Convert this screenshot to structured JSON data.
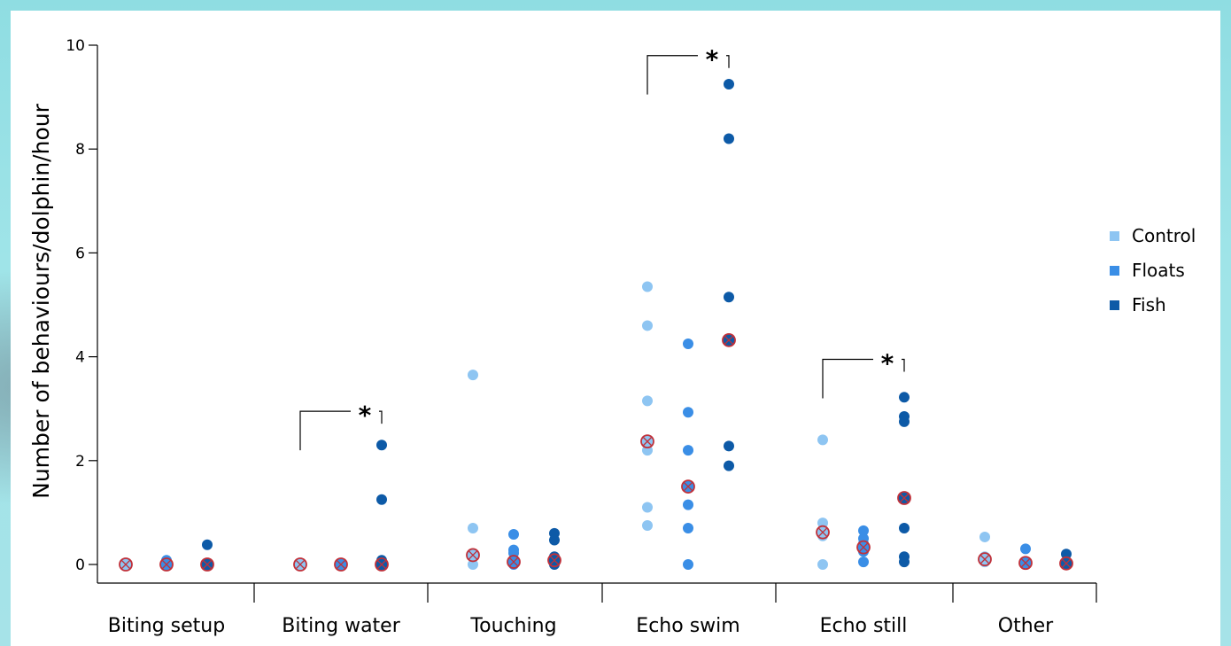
{
  "chart_data": {
    "type": "scatter",
    "ylabel": "Number of behaviours/dolphin/hour",
    "xlabel": "",
    "ylim": [
      0,
      10
    ],
    "yticks": [
      "0",
      "2",
      "4",
      "6",
      "8",
      "10"
    ],
    "categories": [
      "Biting setup",
      "Biting water",
      "Touching",
      "Echo swim",
      "Echo still",
      "Other"
    ],
    "legend": {
      "placement": "right",
      "entries": [
        "Control",
        "Floats",
        "Fish"
      ]
    },
    "colors": {
      "Control": "#8ec5f2",
      "Floats": "#3a8ee6",
      "Fish": "#0d5aa7",
      "marker_outline": "#c0313a"
    },
    "series": [
      {
        "name": "Control",
        "points": [
          [
            0,
            0
          ],
          [
            0,
            0.02
          ],
          [
            0,
            0
          ],
          [
            1,
            0
          ],
          [
            1,
            0
          ],
          [
            2,
            3.65
          ],
          [
            2,
            0.7
          ],
          [
            2,
            0.2
          ],
          [
            2,
            0
          ],
          [
            3,
            5.35
          ],
          [
            3,
            4.6
          ],
          [
            3,
            3.15
          ],
          [
            3,
            2.2
          ],
          [
            3,
            1.1
          ],
          [
            3,
            0.75
          ],
          [
            4,
            2.4
          ],
          [
            4,
            0.8
          ],
          [
            4,
            0.6
          ],
          [
            4,
            0.55
          ],
          [
            4,
            0
          ],
          [
            5,
            0.53
          ],
          [
            5,
            0.15
          ],
          [
            5,
            0.05
          ]
        ],
        "marked": [
          [
            0,
            0
          ],
          [
            1,
            0
          ],
          [
            2,
            0.18
          ],
          [
            3,
            2.37
          ],
          [
            4,
            0.62
          ],
          [
            5,
            0.1
          ]
        ]
      },
      {
        "name": "Floats",
        "points": [
          [
            0,
            0.08
          ],
          [
            0,
            0
          ],
          [
            1,
            0
          ],
          [
            1,
            0
          ],
          [
            2,
            0.58
          ],
          [
            2,
            0.28
          ],
          [
            2,
            0.22
          ],
          [
            2,
            0.05
          ],
          [
            2,
            0
          ],
          [
            3,
            4.25
          ],
          [
            3,
            2.93
          ],
          [
            3,
            2.2
          ],
          [
            3,
            1.15
          ],
          [
            3,
            0.7
          ],
          [
            3,
            0
          ],
          [
            4,
            0.65
          ],
          [
            4,
            0.5
          ],
          [
            4,
            0.4
          ],
          [
            4,
            0.25
          ],
          [
            4,
            0.05
          ],
          [
            5,
            0.3
          ],
          [
            5,
            0.05
          ],
          [
            5,
            0
          ]
        ],
        "marked": [
          [
            0,
            0
          ],
          [
            1,
            0
          ],
          [
            2,
            0.05
          ],
          [
            3,
            1.5
          ],
          [
            4,
            0.33
          ],
          [
            5,
            0.03
          ]
        ]
      },
      {
        "name": "Fish",
        "points": [
          [
            0,
            0.38
          ],
          [
            0,
            0
          ],
          [
            1,
            2.3
          ],
          [
            1,
            1.25
          ],
          [
            1,
            0.08
          ],
          [
            1,
            0
          ],
          [
            2,
            0.6
          ],
          [
            2,
            0.47
          ],
          [
            2,
            0.15
          ],
          [
            2,
            0.05
          ],
          [
            2,
            0
          ],
          [
            3,
            9.25
          ],
          [
            3,
            8.2
          ],
          [
            3,
            5.15
          ],
          [
            3,
            4.32
          ],
          [
            3,
            2.28
          ],
          [
            3,
            1.9
          ],
          [
            4,
            3.22
          ],
          [
            4,
            2.85
          ],
          [
            4,
            2.75
          ],
          [
            4,
            1.3
          ],
          [
            4,
            0.7
          ],
          [
            4,
            0.15
          ],
          [
            4,
            0.05
          ],
          [
            5,
            0.2
          ],
          [
            5,
            0.05
          ],
          [
            5,
            0
          ]
        ],
        "marked": [
          [
            0,
            0
          ],
          [
            1,
            0
          ],
          [
            2,
            0.08
          ],
          [
            3,
            4.32
          ],
          [
            4,
            1.28
          ],
          [
            5,
            0.02
          ]
        ]
      }
    ],
    "significance": [
      {
        "category": 1,
        "label": "*",
        "from_series": "Floats",
        "to_series": "Fish"
      },
      {
        "category": 3,
        "label": "*",
        "from_series": "Floats",
        "to_series": "Fish"
      },
      {
        "category": 4,
        "label": "*",
        "from_series": "Floats",
        "to_series": "Fish"
      }
    ],
    "grid": false
  }
}
